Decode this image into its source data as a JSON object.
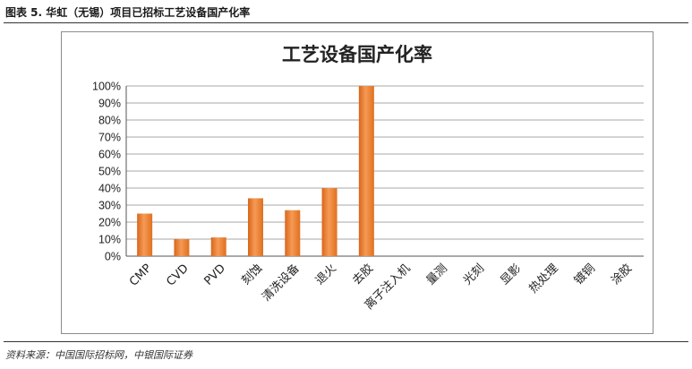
{
  "caption": "图表 5. 华虹（无锡）项目已招标工艺设备国产化率",
  "source": "资料来源：中国国际招标网，中银国际证券",
  "chart_data": {
    "type": "bar",
    "title": "工艺设备国产化率",
    "categories": [
      "CMP",
      "CVD",
      "PVD",
      "刻蚀",
      "清洗设备",
      "退火",
      "去胶",
      "离子注入机",
      "量测",
      "光刻",
      "显影",
      "热处理",
      "镀铜",
      "涂胶"
    ],
    "values": [
      25,
      10,
      11,
      34,
      27,
      40,
      100,
      0,
      0,
      0,
      0,
      0,
      0,
      0
    ],
    "ylim": [
      0,
      100
    ],
    "yticks": [
      "0%",
      "10%",
      "20%",
      "30%",
      "40%",
      "50%",
      "60%",
      "70%",
      "80%",
      "90%",
      "100%"
    ],
    "xlabel": "",
    "ylabel": "",
    "grid": true,
    "legend": "none",
    "bar_color": "#ee7d2c"
  }
}
